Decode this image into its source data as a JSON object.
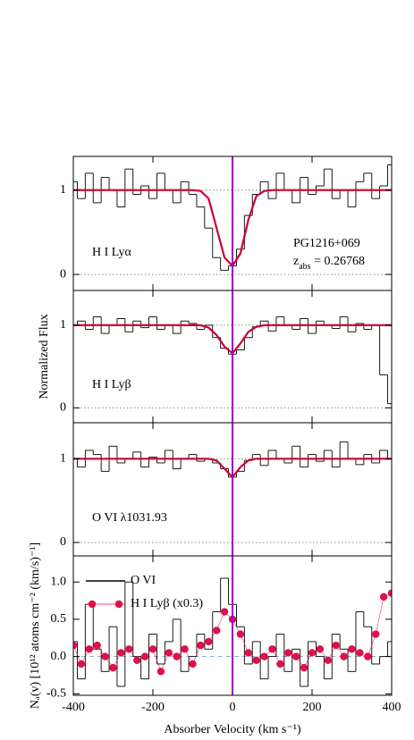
{
  "chart_data": [
    {
      "type": "line",
      "label": "H I Lyα",
      "target": "PG1216+069",
      "z_symbol": "z",
      "z_subscript": "abs",
      "z_text": " = 0.26768",
      "xlim": [
        -400,
        400
      ],
      "xticks": [
        -400,
        -200,
        0,
        200,
        400
      ],
      "xtick_labels": false,
      "ylim": [
        -0.19,
        1.4
      ],
      "yticks": [
        0,
        1
      ],
      "grid": true,
      "vline": 0,
      "vline_color": "#9900cc",
      "series": [
        {
          "style": "step",
          "color": "#000000",
          "x": [
            -400,
            -380,
            -360,
            -340,
            -320,
            -300,
            -280,
            -260,
            -240,
            -220,
            -200,
            -180,
            -160,
            -140,
            -120,
            -100,
            -80,
            -60,
            -40,
            -20,
            0,
            20,
            40,
            60,
            80,
            100,
            120,
            140,
            160,
            180,
            200,
            220,
            240,
            260,
            280,
            300,
            320,
            340,
            360,
            380,
            400
          ],
          "values": [
            1.1,
            0.9,
            1.2,
            0.85,
            1.15,
            1.0,
            0.8,
            1.25,
            0.95,
            1.05,
            0.9,
            1.2,
            1.0,
            0.85,
            1.1,
            0.95,
            0.8,
            0.55,
            0.2,
            0.05,
            0.1,
            0.3,
            0.7,
            0.95,
            1.1,
            0.9,
            1.2,
            1.0,
            0.85,
            1.15,
            0.95,
            1.05,
            1.25,
            0.9,
            1.0,
            0.8,
            1.1,
            1.2,
            0.9,
            1.05,
            1.3
          ]
        },
        {
          "style": "line",
          "color": "#cc0033",
          "x": [
            -400,
            -100,
            -80,
            -60,
            -40,
            -20,
            0,
            20,
            40,
            60,
            80,
            100,
            400
          ],
          "values": [
            1,
            1,
            0.99,
            0.9,
            0.55,
            0.2,
            0.1,
            0.25,
            0.65,
            0.93,
            0.99,
            1,
            1
          ]
        }
      ]
    },
    {
      "type": "line",
      "label": "H I Lyβ",
      "ylabel": "Normalized Flux",
      "xlim": [
        -400,
        400
      ],
      "xticks": [
        -400,
        -200,
        0,
        200,
        400
      ],
      "xtick_labels": false,
      "ylim": [
        -0.18,
        1.42
      ],
      "yticks": [
        0,
        1
      ],
      "grid": true,
      "vline": 0,
      "vline_color": "#9900cc",
      "series": [
        {
          "style": "step",
          "color": "#000000",
          "x": [
            -400,
            -380,
            -360,
            -340,
            -320,
            -300,
            -280,
            -260,
            -240,
            -220,
            -200,
            -180,
            -160,
            -140,
            -120,
            -100,
            -80,
            -60,
            -40,
            -20,
            0,
            20,
            40,
            60,
            80,
            100,
            120,
            140,
            160,
            180,
            200,
            220,
            240,
            260,
            280,
            300,
            320,
            340,
            360,
            380,
            400
          ],
          "values": [
            1.0,
            1.05,
            0.95,
            1.1,
            0.9,
            1.0,
            1.08,
            0.92,
            1.05,
            0.97,
            1.1,
            0.95,
            1.0,
            0.9,
            1.05,
            1.02,
            0.95,
            1.0,
            0.85,
            0.72,
            0.65,
            0.7,
            0.85,
            0.98,
            1.05,
            0.93,
            1.1,
            1.0,
            0.95,
            1.08,
            0.9,
            1.05,
            1.0,
            0.96,
            1.1,
            0.92,
            1.02,
            0.95,
            1.0,
            0.4,
            0.05
          ]
        },
        {
          "style": "line",
          "color": "#cc0033",
          "x": [
            -400,
            -100,
            -80,
            -60,
            -40,
            -20,
            0,
            20,
            40,
            60,
            80,
            100,
            400
          ],
          "values": [
            1,
            1,
            1,
            0.97,
            0.88,
            0.74,
            0.66,
            0.78,
            0.92,
            0.98,
            1,
            1,
            1
          ]
        }
      ]
    },
    {
      "type": "line",
      "label": "O VI λ1031.93",
      "xlim": [
        -400,
        400
      ],
      "xticks": [
        -400,
        -200,
        0,
        200,
        400
      ],
      "xtick_labels": false,
      "ylim": [
        -0.16,
        1.43
      ],
      "yticks": [
        0,
        1
      ],
      "grid": true,
      "vline": 0,
      "vline_color": "#9900cc",
      "series": [
        {
          "style": "step",
          "color": "#000000",
          "x": [
            -400,
            -380,
            -360,
            -340,
            -320,
            -300,
            -280,
            -260,
            -240,
            -220,
            -200,
            -180,
            -160,
            -140,
            -120,
            -100,
            -80,
            -60,
            -40,
            -20,
            0,
            20,
            40,
            60,
            80,
            100,
            120,
            140,
            160,
            180,
            200,
            220,
            240,
            260,
            280,
            300,
            320,
            340,
            360,
            380,
            400
          ],
          "values": [
            1.0,
            0.9,
            1.1,
            1.05,
            0.85,
            1.15,
            0.95,
            1.0,
            1.08,
            0.9,
            1.02,
            0.95,
            1.1,
            0.88,
            1.0,
            1.05,
            0.97,
            1.0,
            0.95,
            0.88,
            0.78,
            0.85,
            0.98,
            1.05,
            0.92,
            1.1,
            1.0,
            0.95,
            1.15,
            0.9,
            1.05,
            0.97,
            1.1,
            0.9,
            1.2,
            1.0,
            0.93,
            1.05,
            0.95,
            1.1,
            1.0
          ]
        },
        {
          "style": "line",
          "color": "#cc0033",
          "x": [
            -400,
            -100,
            -80,
            -60,
            -40,
            -20,
            0,
            20,
            40,
            60,
            80,
            100,
            400
          ],
          "values": [
            1,
            1,
            1,
            1,
            0.98,
            0.88,
            0.78,
            0.9,
            0.98,
            1,
            1,
            1,
            1
          ]
        }
      ]
    },
    {
      "type": "line",
      "ylabel": "Nₐ(v) [10¹² atoms cm⁻² (km/s)⁻¹]",
      "xlabel": "Absorber Velocity (km s⁻¹)",
      "xlim": [
        -400,
        400
      ],
      "xticks": [
        -400,
        -200,
        0,
        200,
        400
      ],
      "xtick_labels": true,
      "ylim": [
        -0.52,
        1.35
      ],
      "yticks": [
        {
          "value": -0.5,
          "label": "-0.5"
        },
        {
          "value": 0,
          "label": "0.0"
        },
        {
          "value": 0.5,
          "label": "0.5"
        },
        {
          "value": 1,
          "label": "1.0"
        }
      ],
      "hline": 0,
      "vline": 0,
      "vline_color": "#9900cc",
      "legend": "upper left",
      "series": [
        {
          "name": "O VI",
          "style": "step",
          "color": "#000000",
          "x": [
            -400,
            -380,
            -360,
            -340,
            -320,
            -300,
            -280,
            -260,
            -240,
            -220,
            -200,
            -180,
            -160,
            -140,
            -120,
            -100,
            -80,
            -60,
            -40,
            -20,
            0,
            20,
            40,
            60,
            80,
            100,
            120,
            140,
            160,
            180,
            200,
            220,
            240,
            260,
            280,
            300,
            320,
            340,
            360,
            380,
            400
          ],
          "values": [
            0.2,
            -0.3,
            0.7,
            0.1,
            -0.2,
            0.4,
            -0.4,
            1.0,
            0.0,
            -0.3,
            0.3,
            -0.1,
            0.2,
            0.5,
            -0.2,
            0.0,
            0.3,
            0.1,
            0.6,
            1.05,
            0.7,
            0.4,
            -0.1,
            0.2,
            -0.3,
            0.0,
            0.3,
            -0.2,
            0.1,
            -0.4,
            0.2,
            0.0,
            -0.3,
            0.3,
            0.1,
            -0.2,
            0.6,
            0.4,
            -0.1,
            0.0,
            0.2
          ]
        },
        {
          "name": "H I Lyβ (x0.3)",
          "style": "markers",
          "color": "#e0104a",
          "x": [
            -400,
            -380,
            -360,
            -340,
            -320,
            -300,
            -280,
            -260,
            -240,
            -220,
            -200,
            -180,
            -160,
            -140,
            -120,
            -100,
            -80,
            -60,
            -40,
            -20,
            0,
            20,
            40,
            60,
            80,
            100,
            120,
            140,
            160,
            180,
            200,
            220,
            240,
            260,
            280,
            300,
            320,
            340,
            360,
            380,
            400
          ],
          "values": [
            0.15,
            -0.1,
            0.1,
            0.15,
            0.0,
            -0.15,
            0.05,
            0.1,
            -0.05,
            0.0,
            0.1,
            -0.2,
            0.05,
            0.0,
            0.1,
            -0.1,
            0.15,
            0.2,
            0.35,
            0.6,
            0.5,
            0.3,
            0.05,
            -0.05,
            0.0,
            0.1,
            -0.1,
            0.05,
            0.0,
            -0.15,
            0.05,
            0.1,
            -0.05,
            0.15,
            0.0,
            0.1,
            0.05,
            0.0,
            0.3,
            0.8,
            0.85
          ]
        }
      ]
    }
  ]
}
